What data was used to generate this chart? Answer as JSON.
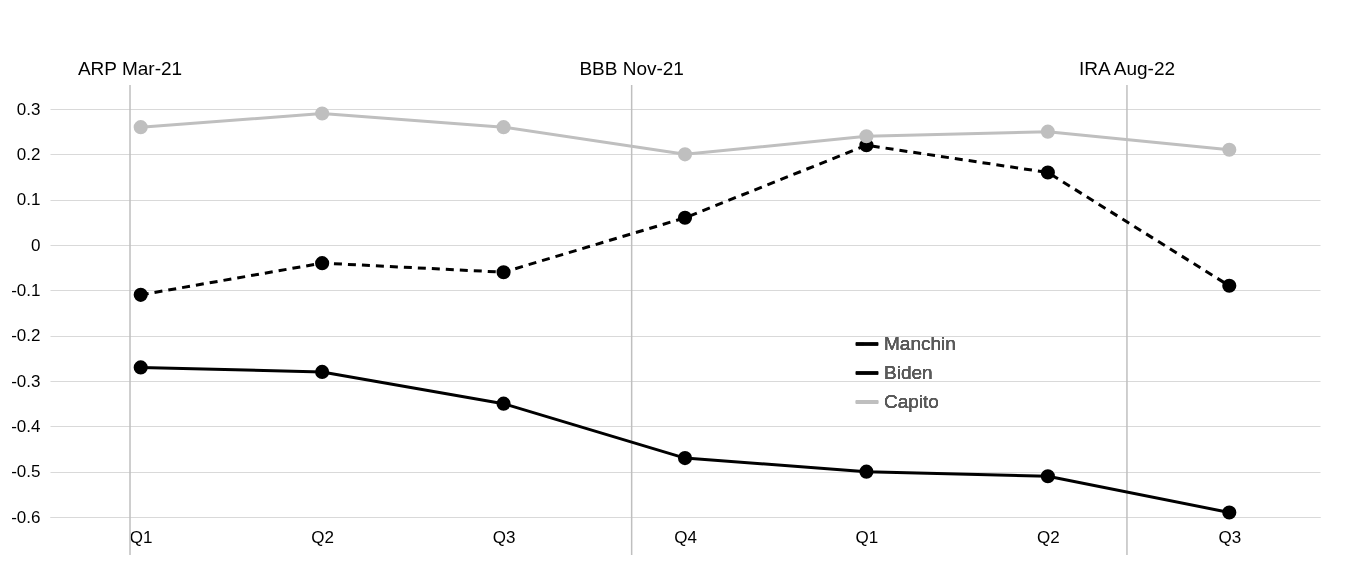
{
  "chart_data": {
    "type": "line",
    "categories": [
      "Q1",
      "Q2",
      "Q3",
      "Q4",
      "Q1",
      "Q2",
      "Q3"
    ],
    "series": [
      {
        "name": "Manchin",
        "color": "#000000",
        "line_style": "dashed",
        "values": [
          -0.11,
          -0.04,
          -0.06,
          0.06,
          0.22,
          0.16,
          -0.09
        ]
      },
      {
        "name": "Biden",
        "color": "#000000",
        "line_style": "solid",
        "values": [
          -0.27,
          -0.28,
          -0.35,
          -0.47,
          -0.5,
          -0.51,
          -0.59
        ]
      },
      {
        "name": "Capito",
        "color": "#bfbfbf",
        "line_style": "solid",
        "values": [
          0.26,
          0.29,
          0.26,
          0.2,
          0.24,
          0.25,
          0.21
        ]
      }
    ],
    "ylim": [
      -0.6,
      0.3
    ],
    "yticks": [
      -0.6,
      -0.5,
      -0.4,
      -0.3,
      -0.2,
      -0.1,
      0,
      0.1,
      0.2,
      0.3
    ],
    "annotations": [
      "ARP Mar-21",
      "BBB Nov-21",
      "IRA Aug-22"
    ],
    "grid": "y",
    "legend": "center",
    "marker": "circle"
  }
}
